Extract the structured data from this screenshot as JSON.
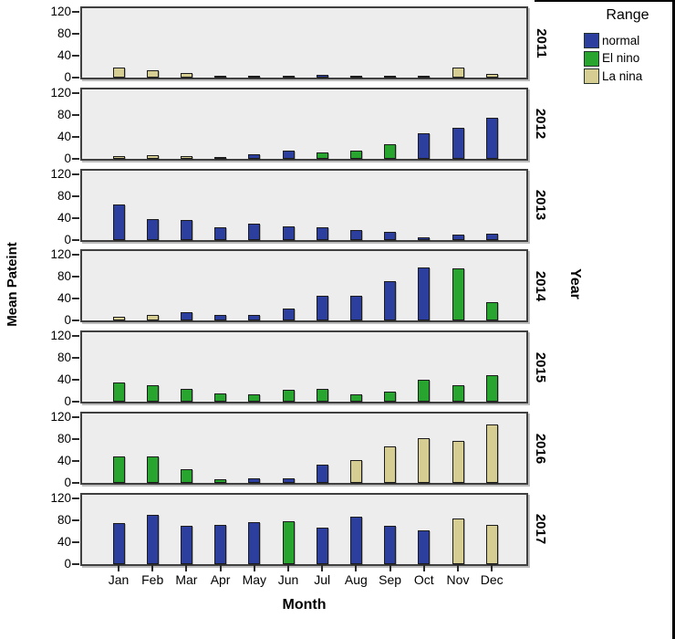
{
  "figure": {
    "y_axis_title": "Mean Pateint",
    "x_axis_title": "Month",
    "right_axis_title": "Year"
  },
  "legend": {
    "title": "Range",
    "items": [
      {
        "key": "normal",
        "label": "normal",
        "color": "#2C3F9E"
      },
      {
        "key": "elnino",
        "label": "El nino",
        "color": "#28A52E"
      },
      {
        "key": "lanina",
        "label": "La nina",
        "color": "#D5CD92"
      }
    ]
  },
  "colors": {
    "panel_background": "#EDEDED",
    "panel_border": "#404040",
    "bar_border": "#1c1c1c",
    "text": "#000000"
  },
  "chart_data": {
    "type": "bar",
    "title": "",
    "xlabel": "Month",
    "ylabel": "Mean Pateint",
    "panel_axis_label": "Year",
    "months": [
      "Jan",
      "Feb",
      "Mar",
      "Apr",
      "May",
      "Jun",
      "Jul",
      "Aug",
      "Sep",
      "Oct",
      "Nov",
      "Dec"
    ],
    "y_ticks": [
      0,
      40,
      80,
      120
    ],
    "ylim": [
      0,
      127
    ],
    "grid": false,
    "legend_position": "top-right",
    "panels": [
      {
        "year": "2011",
        "series": [
          "lanina",
          "lanina",
          "lanina",
          "lanina",
          "normal",
          "normal",
          "normal",
          "lanina",
          "normal",
          "normal",
          "lanina",
          "lanina"
        ],
        "values": [
          19,
          13,
          9,
          4,
          3,
          2,
          5,
          4,
          2,
          4,
          18,
          6
        ]
      },
      {
        "year": "2012",
        "series": [
          "lanina",
          "lanina",
          "lanina",
          "normal",
          "normal",
          "normal",
          "elnino",
          "elnino",
          "elnino",
          "normal",
          "normal",
          "normal"
        ],
        "values": [
          5,
          6,
          4,
          3,
          8,
          15,
          11,
          14,
          27,
          47,
          57,
          75
        ]
      },
      {
        "year": "2013",
        "series": [
          "normal",
          "normal",
          "normal",
          "normal",
          "normal",
          "normal",
          "normal",
          "normal",
          "normal",
          "normal",
          "normal",
          "normal"
        ],
        "values": [
          65,
          37,
          36,
          22,
          30,
          24,
          22,
          18,
          14,
          4,
          10,
          11
        ]
      },
      {
        "year": "2014",
        "series": [
          "lanina",
          "lanina",
          "normal",
          "normal",
          "normal",
          "normal",
          "normal",
          "normal",
          "normal",
          "normal",
          "elnino",
          "elnino"
        ],
        "values": [
          8,
          10,
          16,
          11,
          11,
          23,
          46,
          45,
          72,
          97,
          95,
          34
        ]
      },
      {
        "year": "2015",
        "series": [
          "elnino",
          "elnino",
          "elnino",
          "elnino",
          "elnino",
          "elnino",
          "elnino",
          "elnino",
          "elnino",
          "elnino",
          "elnino",
          "elnino"
        ],
        "values": [
          36,
          30,
          23,
          16,
          13,
          22,
          23,
          13,
          19,
          41,
          30,
          49
        ]
      },
      {
        "year": "2016",
        "series": [
          "elnino",
          "elnino",
          "elnino",
          "elnino",
          "normal",
          "normal",
          "normal",
          "lanina",
          "lanina",
          "lanina",
          "lanina",
          "lanina"
        ],
        "values": [
          48,
          48,
          25,
          6,
          8,
          9,
          33,
          41,
          66,
          82,
          77,
          106
        ]
      },
      {
        "year": "2017",
        "series": [
          "normal",
          "normal",
          "normal",
          "normal",
          "normal",
          "elnino",
          "normal",
          "normal",
          "normal",
          "normal",
          "lanina",
          "lanina"
        ],
        "values": [
          74,
          90,
          69,
          72,
          76,
          78,
          66,
          86,
          69,
          62,
          83,
          71
        ]
      }
    ]
  }
}
